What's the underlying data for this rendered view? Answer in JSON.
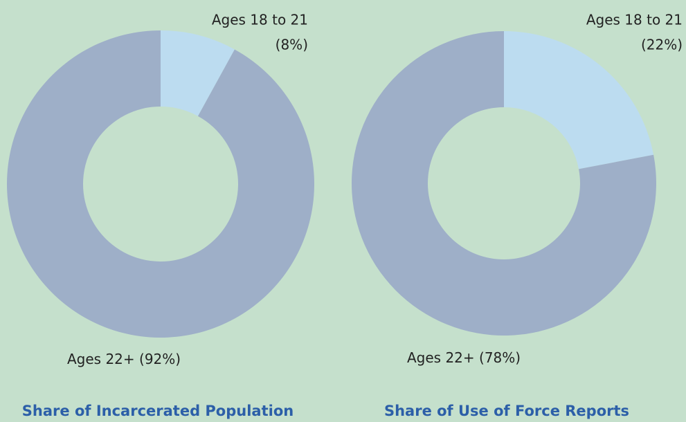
{
  "chart_data": [
    {
      "type": "donut",
      "title": "Share of Incarcerated Population",
      "categories": [
        "Ages 18 to 21",
        "Ages 22+"
      ],
      "values": [
        8,
        92
      ],
      "value_labels": [
        "(8%)",
        "(92%)"
      ],
      "colors": [
        "#bcdcf0",
        "#9eafc8"
      ]
    },
    {
      "type": "donut",
      "title": "Share of Use of Force Reports",
      "categories": [
        "Ages 18 to 21",
        "Ages 22+"
      ],
      "values": [
        22,
        78
      ],
      "value_labels": [
        "(22%)",
        "(78%)"
      ],
      "colors": [
        "#bcdcf0",
        "#9eafc8"
      ]
    }
  ]
}
